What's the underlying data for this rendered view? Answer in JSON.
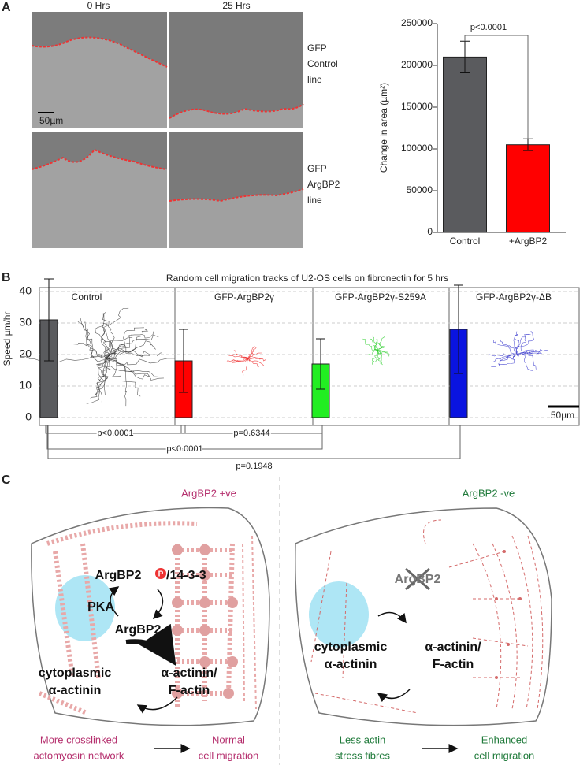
{
  "panel_a": {
    "label": "A",
    "columns": [
      "0 Hrs",
      "25 Hrs"
    ],
    "rows": [
      [
        "GFP",
        "Control",
        "line"
      ],
      [
        "GFP",
        "ArgBP2",
        "line"
      ]
    ],
    "scale_bar": "50µm"
  },
  "panel_b": {
    "label": "B",
    "scale_bar": "50µm"
  },
  "chart_data": [
    {
      "type": "bar",
      "y_label": "Change in area (µm²)",
      "categories": [
        "Control",
        "+ArgBP2"
      ],
      "values": [
        210000,
        105000
      ],
      "errors": [
        19000,
        7000
      ],
      "colors": [
        "#5a5b5e",
        "#ff0000"
      ],
      "ylim": [
        0,
        250000
      ],
      "yticks": [
        0,
        50000,
        100000,
        150000,
        200000,
        250000
      ],
      "grid": false,
      "annotations": [
        {
          "text": "p<0.0001",
          "between": [
            "Control",
            "+ArgBP2"
          ]
        }
      ]
    },
    {
      "type": "bar",
      "title": "Random cell migration tracks of U2-OS cells on fibronectin for 5 hrs",
      "y_label": "Speed µm/hr",
      "categories": [
        "Control",
        "GFP-ArgBP2γ",
        "GFP-ArgBP2γ-S259A",
        "GFP-ArgBP2γ-ΔB"
      ],
      "values": [
        31,
        18,
        17,
        28
      ],
      "errors": [
        13,
        10,
        8,
        14
      ],
      "colors": [
        "#5a5b5e",
        "#ff0000",
        "#22ee22",
        "#0a14e0"
      ],
      "ylim": [
        -2.5,
        41.5
      ],
      "yticks": [
        0,
        10,
        20,
        30,
        40
      ],
      "grid": true,
      "annotations": [
        {
          "text": "p<0.0001",
          "between": [
            "Control",
            "GFP-ArgBP2γ"
          ]
        },
        {
          "text": "p=0.6344",
          "between": [
            "GFP-ArgBP2γ",
            "GFP-ArgBP2γ-S259A"
          ]
        },
        {
          "text": "p<0.0001",
          "between": [
            "Control",
            "GFP-ArgBP2γ-S259A"
          ]
        },
        {
          "text": "p=0.1948",
          "between": [
            "Control",
            "GFP-ArgBP2γ-ΔB"
          ]
        }
      ]
    }
  ],
  "panel_c": {
    "label": "C",
    "left": {
      "title": "ArgBP2 +ve",
      "complex": "ArgBP2",
      "phospho": "P",
      "partner": "/14-3-3",
      "kinase": "PKA",
      "protein": "ArgBP2",
      "cytoplasmic": [
        "cytoplasmic",
        "α-actinin"
      ],
      "bound": [
        "α-actinin/",
        "F-actin"
      ],
      "cause": [
        "More crosslinked",
        "actomyosin network"
      ],
      "effect": [
        "Normal",
        "cell migration"
      ]
    },
    "right": {
      "title": "ArgBP2 -ve",
      "protein": "ArgBP2",
      "cytoplasmic": [
        "cytoplasmic",
        "α-actinin"
      ],
      "bound": [
        "α-actinin/",
        "F-actin"
      ],
      "cause": [
        "Less actin",
        "stress fibres"
      ],
      "effect": [
        "Enhanced",
        "cell migration"
      ]
    }
  }
}
